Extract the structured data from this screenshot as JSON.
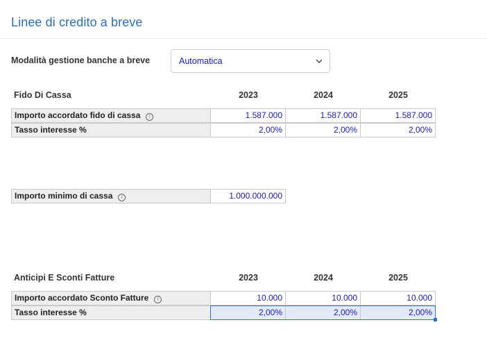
{
  "page": {
    "title": "Linee di credito a breve"
  },
  "mode": {
    "label": "Modalità gestione banche a breve",
    "selected": "Automatica",
    "chevron_icon": "chevron-down-icon"
  },
  "fido": {
    "heading": "Fido Di Cassa",
    "years": [
      "2023",
      "2024",
      "2025"
    ],
    "rows": [
      {
        "label": "Importo accordato fido di cassa",
        "has_info": true,
        "values": [
          "1.587.000",
          "1.587.000",
          "1.587.000"
        ]
      },
      {
        "label": "Tasso interesse %",
        "has_info": false,
        "values": [
          "2,00%",
          "2,00%",
          "2,00%"
        ]
      }
    ]
  },
  "min_cash": {
    "label": "Importo minimo di cassa",
    "value": "1.000.000.000"
  },
  "anticipi": {
    "heading": "Anticipi E Sconti Fatture",
    "years": [
      "2023",
      "2024",
      "2025"
    ],
    "rows": [
      {
        "label": "Importo accordato Sconto Fatture",
        "has_info": true,
        "values": [
          "10.000",
          "10.000",
          "10.000"
        ]
      },
      {
        "label": "Tasso interesse %",
        "has_info": false,
        "values": [
          "2,00%",
          "2,00%",
          "2,00%"
        ]
      }
    ]
  },
  "info_icon_glyph": "i",
  "colors": {
    "title": "#2f6fb0",
    "value_text": "#1a1aa8",
    "label_bg": "#eeeeee",
    "selection": "#3b6fc4"
  }
}
